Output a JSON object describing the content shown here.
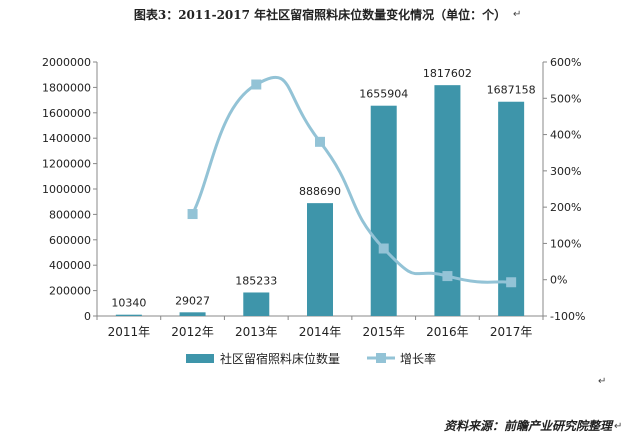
{
  "title": "图表3：2011-2017 年社区留宿照料床位数量变化情况（单位：个）",
  "title_mark": "↵",
  "source": "资料来源：前瞻产业研究院整理",
  "source_mark": "↵",
  "mid_mark": "↵",
  "colors": {
    "bar": "#3e95aa",
    "line": "#93c3d6",
    "axis": "#888888",
    "text": "#222222"
  },
  "chart_data": {
    "type": "bar+line",
    "categories": [
      "2011年",
      "2012年",
      "2013年",
      "2014年",
      "2015年",
      "2016年",
      "2017年"
    ],
    "series": [
      {
        "name": "社区留宿照料床位数量",
        "type": "bar",
        "axis": "left",
        "values": [
          10340,
          29027,
          185233,
          888690,
          1655904,
          1817602,
          1687158
        ],
        "labels": [
          "10340",
          "29027",
          "185233",
          "888690",
          "1655904",
          "1817602",
          "1687158"
        ]
      },
      {
        "name": "增长率",
        "type": "line",
        "axis": "right",
        "smooth": true,
        "marker": "square",
        "values": [
          null,
          1.81,
          5.38,
          3.8,
          0.86,
          0.1,
          -0.07
        ]
      }
    ],
    "y_left": {
      "lim": [
        0,
        2000000
      ],
      "ticks": [
        0,
        200000,
        400000,
        600000,
        800000,
        1000000,
        1200000,
        1400000,
        1600000,
        1800000,
        2000000
      ],
      "tick_labels": [
        "0",
        "200000",
        "400000",
        "600000",
        "800000",
        "1000000",
        "1200000",
        "1400000",
        "1600000",
        "1800000",
        "2000000"
      ]
    },
    "y_right": {
      "lim": [
        -1,
        6
      ],
      "ticks": [
        -1,
        0,
        1,
        2,
        3,
        4,
        5,
        6
      ],
      "tick_labels": [
        "-100%",
        "0%",
        "100%",
        "200%",
        "300%",
        "400%",
        "500%",
        "600%"
      ]
    },
    "grid": false,
    "legend_position": "bottom"
  }
}
